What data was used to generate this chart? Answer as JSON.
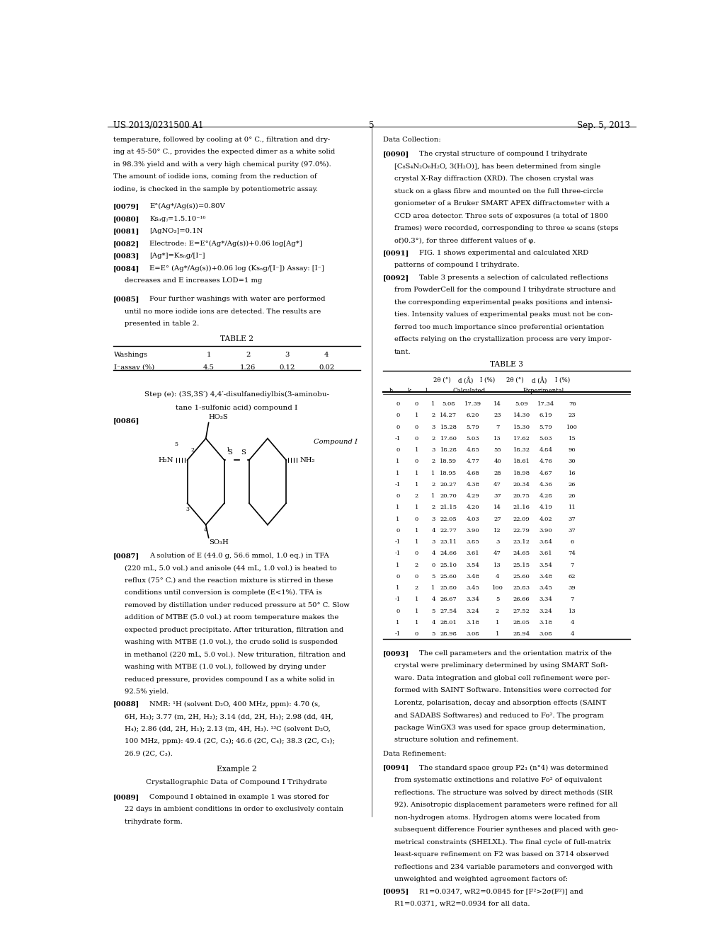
{
  "page_header_left": "US 2013/0231500 A1",
  "page_header_right": "Sep. 5, 2013",
  "page_number": "5",
  "bg_color": "#ffffff",
  "table3_data": [
    [
      0,
      0,
      1,
      "5.08",
      "17.39",
      14,
      "5.09",
      "17.34",
      76
    ],
    [
      0,
      1,
      2,
      "14.27",
      "6.20",
      23,
      "14.30",
      "6.19",
      23
    ],
    [
      0,
      0,
      3,
      "15.28",
      "5.79",
      7,
      "15.30",
      "5.79",
      100
    ],
    [
      -1,
      0,
      2,
      "17.60",
      "5.03",
      13,
      "17.62",
      "5.03",
      15
    ],
    [
      0,
      1,
      3,
      "18.28",
      "4.85",
      55,
      "18.32",
      "4.84",
      96
    ],
    [
      1,
      0,
      2,
      "18.59",
      "4.77",
      40,
      "18.61",
      "4.76",
      30
    ],
    [
      1,
      1,
      1,
      "18.95",
      "4.68",
      28,
      "18.98",
      "4.67",
      16
    ],
    [
      -1,
      1,
      2,
      "20.27",
      "4.38",
      47,
      "20.34",
      "4.36",
      26
    ],
    [
      0,
      2,
      1,
      "20.70",
      "4.29",
      37,
      "20.75",
      "4.28",
      26
    ],
    [
      1,
      1,
      2,
      "21.15",
      "4.20",
      14,
      "21.16",
      "4.19",
      11
    ],
    [
      1,
      0,
      3,
      "22.05",
      "4.03",
      27,
      "22.09",
      "4.02",
      37
    ],
    [
      0,
      1,
      4,
      "22.77",
      "3.90",
      12,
      "22.79",
      "3.90",
      37
    ],
    [
      -1,
      1,
      3,
      "23.11",
      "3.85",
      3,
      "23.12",
      "3.84",
      6
    ],
    [
      -1,
      0,
      4,
      "24.66",
      "3.61",
      47,
      "24.65",
      "3.61",
      74
    ],
    [
      1,
      2,
      0,
      "25.10",
      "3.54",
      13,
      "25.15",
      "3.54",
      7
    ],
    [
      0,
      0,
      5,
      "25.60",
      "3.48",
      4,
      "25.60",
      "3.48",
      62
    ],
    [
      1,
      2,
      1,
      "25.80",
      "3.45",
      100,
      "25.83",
      "3.45",
      39
    ],
    [
      -1,
      1,
      4,
      "26.67",
      "3.34",
      5,
      "26.66",
      "3.34",
      7
    ],
    [
      0,
      1,
      5,
      "27.54",
      "3.24",
      2,
      "27.52",
      "3.24",
      13
    ],
    [
      1,
      1,
      4,
      "28.01",
      "3.18",
      1,
      "28.05",
      "3.18",
      4
    ],
    [
      -1,
      0,
      5,
      "28.98",
      "3.08",
      1,
      "28.94",
      "3.08",
      4
    ]
  ]
}
